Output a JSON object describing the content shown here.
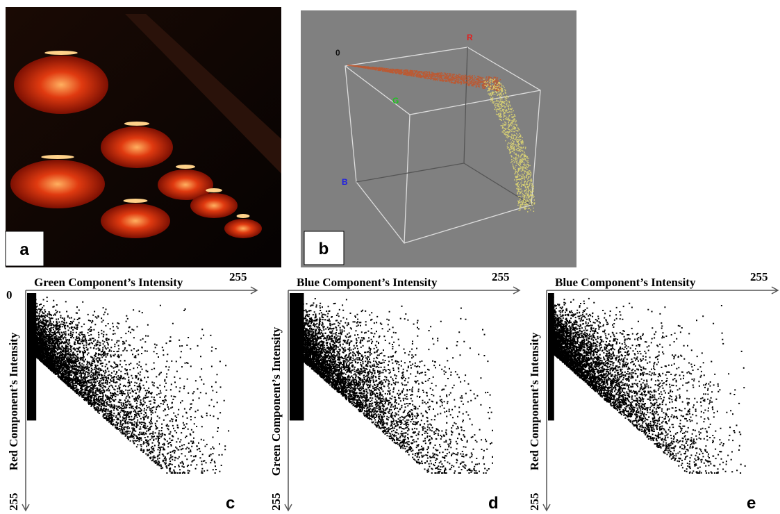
{
  "panels": {
    "a": {
      "label": "a"
    },
    "b": {
      "label": "b",
      "axis_labels": {
        "origin": "0",
        "r": "R",
        "g": "G",
        "b": "B"
      }
    },
    "c": {
      "x_axis_title": "Green Component’s Intensity",
      "x_max": "255",
      "y_min": "0",
      "y_axis_title": "Red Component’s Intensity",
      "y_max": "255",
      "label": "c"
    },
    "d": {
      "x_axis_title": "Blue Component’s Intensity",
      "x_max": "255",
      "y_axis_title": "Green Component’s Intensity",
      "y_max": "255",
      "label": "d"
    },
    "e": {
      "x_axis_title": "Blue Component’s Intensity",
      "x_max": "255",
      "y_axis_title": "Red Component’s Intensity",
      "y_max": "255",
      "label": "e"
    }
  }
}
